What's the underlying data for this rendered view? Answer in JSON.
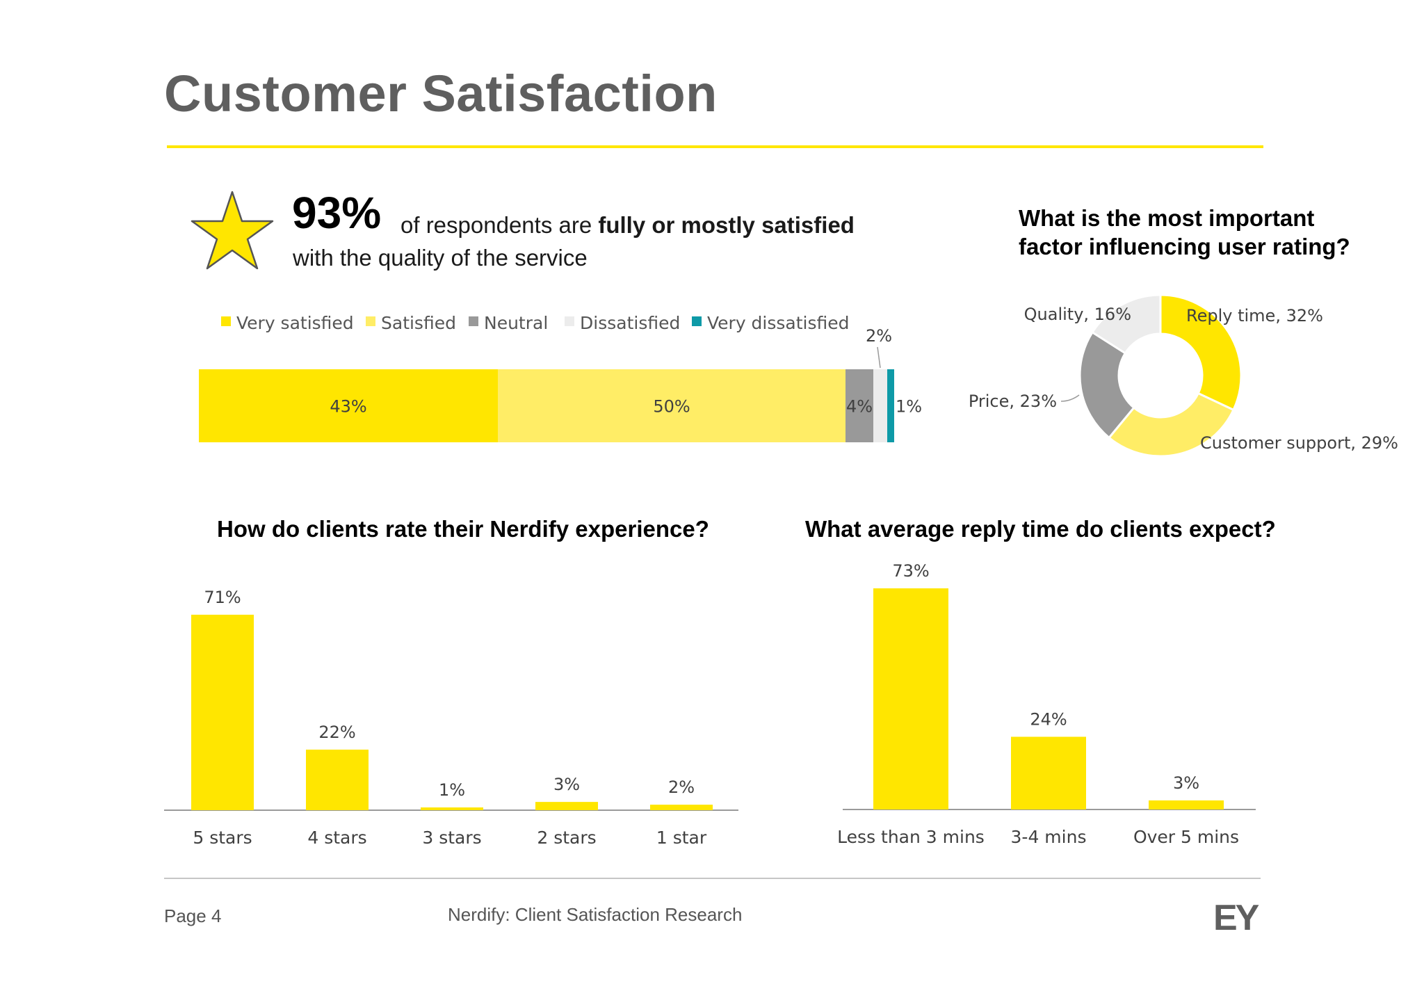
{
  "page": {
    "title": "Customer Satisfaction",
    "headline": {
      "big": "93%",
      "text_pre": "of respondents are ",
      "text_bold": "fully or mostly satisfied",
      "line2": "with the quality of the service",
      "icon": "star-icon"
    },
    "footer": {
      "page_label": "Page 4",
      "report_title": "Nerdify:  Client Satisfaction Research",
      "logo": "EY"
    }
  },
  "colors": {
    "accent_yellow": "#ffe600",
    "light_yellow": "#ffed66",
    "grey": "#999999",
    "light_grey": "#ececec",
    "teal": "#0e9aa7",
    "title_grey": "#5f5f5f"
  },
  "chart_data": [
    {
      "type": "bar",
      "orientation": "horizontal-stacked-100",
      "title": "",
      "legend_position": "top",
      "series": [
        {
          "name": "Very satisfied",
          "values": [
            43
          ],
          "label": "43%",
          "color": "#ffe600"
        },
        {
          "name": "Satisfied",
          "values": [
            50
          ],
          "label": "50%",
          "color": "#ffed66"
        },
        {
          "name": "Neutral",
          "values": [
            4
          ],
          "label": "4%",
          "color": "#999999"
        },
        {
          "name": "Dissatisfied",
          "values": [
            2
          ],
          "label": "2%",
          "color": "#ececec"
        },
        {
          "name": "Very dissatisfied",
          "values": [
            1
          ],
          "label": "1%",
          "color": "#0e9aa7"
        }
      ]
    },
    {
      "type": "pie",
      "style": "donut",
      "title": "What is the most important factor influencing user rating?",
      "title_lines": [
        "What is the most important",
        "factor influencing user rating?"
      ],
      "slices": [
        {
          "label": "Reply time, 32%",
          "value": 32,
          "color": "#ffe600"
        },
        {
          "label": "Customer support, 29%",
          "value": 29,
          "color": "#ffed66"
        },
        {
          "label": "Price, 23%",
          "value": 23,
          "color": "#999999"
        },
        {
          "label": "Quality, 16%",
          "value": 16,
          "color": "#ececec"
        }
      ]
    },
    {
      "type": "bar",
      "title": "How do clients rate their Nerdify experience?",
      "categories": [
        "5 stars",
        "4 stars",
        "3 stars",
        "2 stars",
        "1 star"
      ],
      "values": [
        71,
        22,
        1,
        3,
        2
      ],
      "labels": [
        "71%",
        "22%",
        "1%",
        "3%",
        "2%"
      ],
      "ylim": [
        0,
        73
      ],
      "grid": false
    },
    {
      "type": "bar",
      "title": "What average reply time do clients expect?",
      "categories": [
        "Less than 3 mins",
        "3-4 mins",
        "Over 5 mins"
      ],
      "values": [
        73,
        24,
        3
      ],
      "labels": [
        "73%",
        "24%",
        "3%"
      ],
      "ylim": [
        0,
        73
      ],
      "grid": false
    }
  ]
}
